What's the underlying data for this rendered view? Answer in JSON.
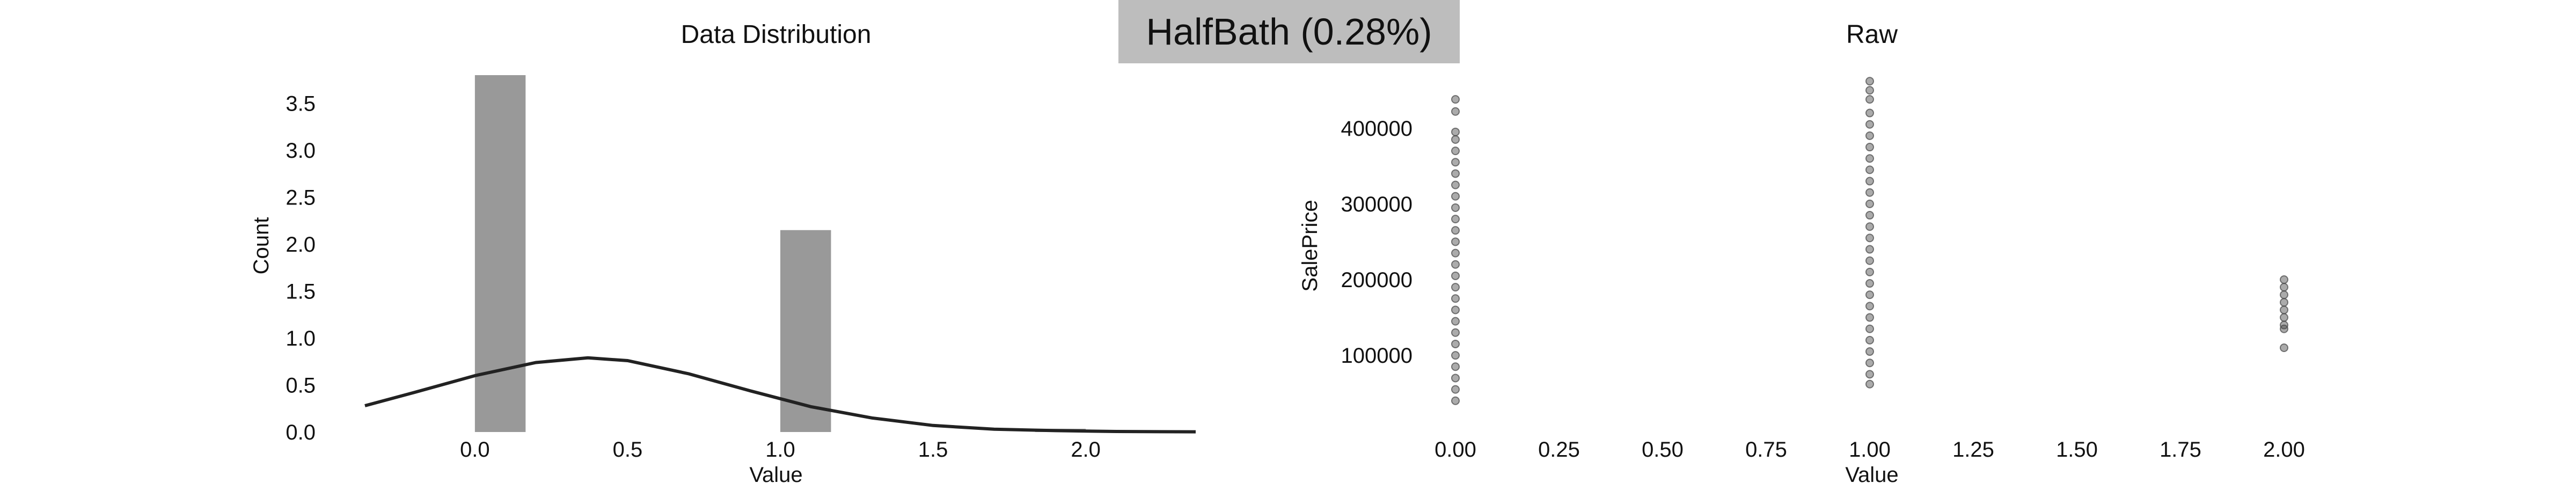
{
  "badge": {
    "text": "HalfBath (0.28%)",
    "background": "#bdbdbd"
  },
  "chart_data": [
    {
      "type": "bar",
      "title": "Data Distribution",
      "xlabel": "Value",
      "ylabel": "Count",
      "xlim": [
        -0.36,
        2.36
      ],
      "ylim": [
        0,
        3.8
      ],
      "xticks": [
        0.0,
        0.5,
        1.0,
        1.5,
        2.0
      ],
      "xtick_labels": [
        "0.0",
        "0.5",
        "1.0",
        "1.5",
        "2.0"
      ],
      "yticks": [
        0.0,
        0.5,
        1.0,
        1.5,
        2.0,
        2.5,
        3.0,
        3.5
      ],
      "ytick_labels": [
        "0.0",
        "0.5",
        "1.0",
        "1.5",
        "2.0",
        "2.5",
        "3.0",
        "3.5"
      ],
      "bars": [
        {
          "x0": 0.0,
          "x1": 0.166,
          "value": 3.8
        },
        {
          "x0": 1.0,
          "x1": 1.166,
          "value": 2.15
        },
        {
          "x0": 1.834,
          "x1": 2.0,
          "value": 0.035
        }
      ],
      "bar_color": "#999999",
      "density_curve": {
        "x": [
          -0.36,
          -0.2,
          0.0,
          0.2,
          0.37,
          0.5,
          0.7,
          0.9,
          1.1,
          1.3,
          1.5,
          1.7,
          1.9,
          2.1,
          2.36
        ],
        "y": [
          0.28,
          0.42,
          0.6,
          0.74,
          0.79,
          0.76,
          0.62,
          0.44,
          0.27,
          0.15,
          0.07,
          0.03,
          0.015,
          0.006,
          0.002
        ],
        "color": "#222222"
      },
      "grid": false
    },
    {
      "type": "scatter",
      "title": "Raw",
      "xlabel": "Value",
      "ylabel": "SalePrice",
      "xlim": [
        0,
        2
      ],
      "ylim": [
        20000,
        470000
      ],
      "xticks": [
        0.0,
        0.25,
        0.5,
        0.75,
        1.0,
        1.25,
        1.5,
        1.75,
        2.0
      ],
      "xtick_labels": [
        "0.00",
        "0.25",
        "0.50",
        "0.75",
        "1.00",
        "1.25",
        "1.50",
        "1.75",
        "2.00"
      ],
      "yticks": [
        100000,
        200000,
        300000,
        400000
      ],
      "ytick_labels": [
        "100000",
        "200000",
        "300000",
        "400000"
      ],
      "point_color": "#444444",
      "points": [
        [
          0,
          40000
        ],
        [
          0,
          55000
        ],
        [
          0,
          70000
        ],
        [
          0,
          85000
        ],
        [
          0,
          100000
        ],
        [
          0,
          115000
        ],
        [
          0,
          130000
        ],
        [
          0,
          145000
        ],
        [
          0,
          160000
        ],
        [
          0,
          175000
        ],
        [
          0,
          190000
        ],
        [
          0,
          205000
        ],
        [
          0,
          220000
        ],
        [
          0,
          235000
        ],
        [
          0,
          250000
        ],
        [
          0,
          265000
        ],
        [
          0,
          280000
        ],
        [
          0,
          295000
        ],
        [
          0,
          310000
        ],
        [
          0,
          325000
        ],
        [
          0,
          340000
        ],
        [
          0,
          355000
        ],
        [
          0,
          370000
        ],
        [
          0,
          385000
        ],
        [
          0,
          395000
        ],
        [
          0,
          422000
        ],
        [
          0,
          438000
        ],
        [
          1,
          62000
        ],
        [
          1,
          75000
        ],
        [
          1,
          90000
        ],
        [
          1,
          105000
        ],
        [
          1,
          120000
        ],
        [
          1,
          135000
        ],
        [
          1,
          150000
        ],
        [
          1,
          165000
        ],
        [
          1,
          180000
        ],
        [
          1,
          195000
        ],
        [
          1,
          210000
        ],
        [
          1,
          225000
        ],
        [
          1,
          240000
        ],
        [
          1,
          255000
        ],
        [
          1,
          270000
        ],
        [
          1,
          285000
        ],
        [
          1,
          300000
        ],
        [
          1,
          315000
        ],
        [
          1,
          330000
        ],
        [
          1,
          345000
        ],
        [
          1,
          360000
        ],
        [
          1,
          375000
        ],
        [
          1,
          390000
        ],
        [
          1,
          405000
        ],
        [
          1,
          420000
        ],
        [
          1,
          438000
        ],
        [
          1,
          450000
        ],
        [
          1,
          462000
        ],
        [
          2,
          110000
        ],
        [
          2,
          135000
        ],
        [
          2,
          140000
        ],
        [
          2,
          150000
        ],
        [
          2,
          160000
        ],
        [
          2,
          170000
        ],
        [
          2,
          180000
        ],
        [
          2,
          190000
        ],
        [
          2,
          200000
        ]
      ],
      "grid": false
    }
  ]
}
